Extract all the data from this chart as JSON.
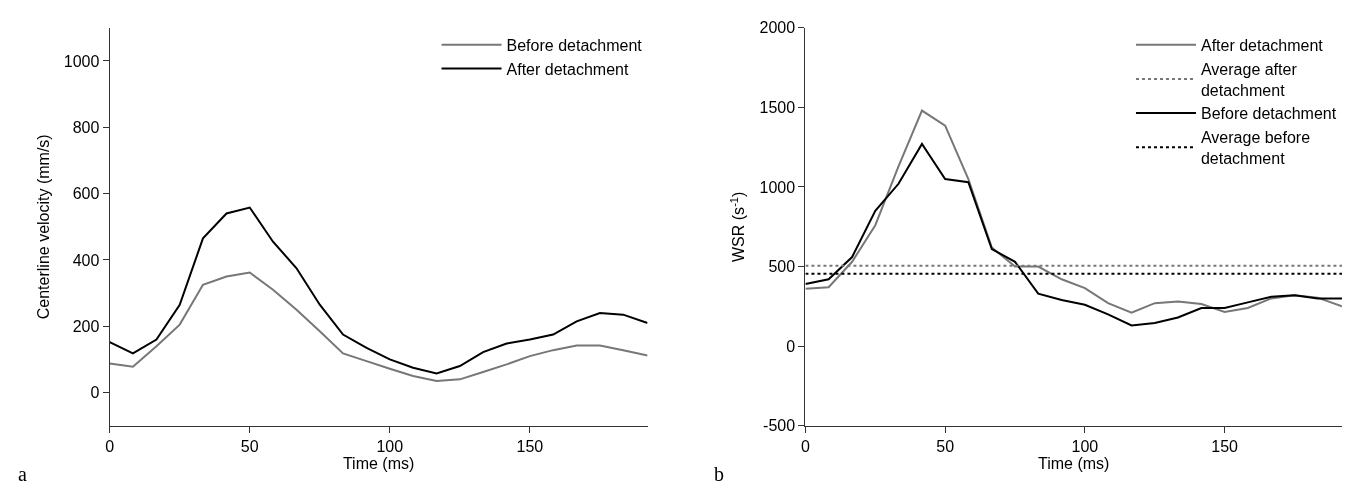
{
  "chart_data": [
    {
      "type": "line",
      "xlabel": "Time (ms)",
      "ylabel": "Centerline velocity (mm/s)",
      "annotations": [
        "a"
      ],
      "x": [
        0,
        8.3,
        16.7,
        25,
        33.3,
        41.7,
        50,
        58.3,
        66.7,
        75,
        83.3,
        91.7,
        100,
        108.3,
        116.7,
        125,
        133.3,
        141.7,
        150,
        158.3,
        166.7,
        175,
        183.3,
        192
      ],
      "series": [
        {
          "name": "Before detachment",
          "color": "#777777",
          "values": [
            88,
            78,
            140,
            205,
            325,
            350,
            362,
            310,
            250,
            185,
            118,
            95,
            72,
            50,
            35,
            40,
            62,
            85,
            110,
            128,
            142,
            142,
            128,
            112
          ]
        },
        {
          "name": "After detachment",
          "color": "#000000",
          "values": [
            152,
            118,
            160,
            265,
            465,
            540,
            558,
            455,
            375,
            265,
            175,
            135,
            100,
            75,
            58,
            80,
            122,
            148,
            160,
            175,
            215,
            240,
            235,
            210
          ]
        }
      ],
      "xlim": [
        0,
        192
      ],
      "xticks": [
        0,
        50,
        100,
        150
      ],
      "ylim": [
        -100,
        1100
      ],
      "yticks": [
        0,
        200,
        400,
        600,
        800,
        1000
      ],
      "legend": "top right",
      "marker": "none",
      "line_style": "solid"
    },
    {
      "type": "line",
      "xlabel": "Time (ms)",
      "ylabel": "WSR (s$^{-1}$)",
      "annotations": [
        "b"
      ],
      "x": [
        0,
        8.3,
        16.7,
        25,
        33.3,
        41.7,
        50,
        58.3,
        66.7,
        75,
        83.3,
        91.7,
        100,
        108.3,
        116.7,
        125,
        133.3,
        141.7,
        150,
        158.3,
        166.7,
        175,
        183.3,
        192
      ],
      "series": [
        {
          "name": "After detachment",
          "color": "#777777",
          "values": [
            360,
            370,
            530,
            760,
            1130,
            1480,
            1385,
            1050,
            620,
            500,
            500,
            420,
            365,
            270,
            210,
            270,
            280,
            265,
            215,
            240,
            300,
            320,
            305,
            250
          ]
        },
        {
          "name": "Before detachment",
          "color": "#000000",
          "values": [
            390,
            420,
            560,
            850,
            1020,
            1270,
            1050,
            1030,
            610,
            530,
            330,
            290,
            260,
            200,
            130,
            145,
            180,
            240,
            240,
            275,
            310,
            320,
            300,
            300
          ]
        }
      ],
      "ref_lines": [
        {
          "axis": "y",
          "value": 505,
          "label": "Average after detachment",
          "color": "#777777",
          "line_style": "dotted"
        },
        {
          "axis": "y",
          "value": 455,
          "label": "Average before detachment",
          "color": "#000000",
          "line_style": "dotted"
        }
      ],
      "xlim": [
        0,
        192
      ],
      "xticks": [
        0,
        50,
        100,
        150
      ],
      "ylim": [
        -500,
        2000
      ],
      "yticks": [
        -500,
        0,
        500,
        1000,
        1500,
        2000
      ],
      "legend": "top right",
      "marker": "none",
      "line_style": "solid"
    }
  ]
}
